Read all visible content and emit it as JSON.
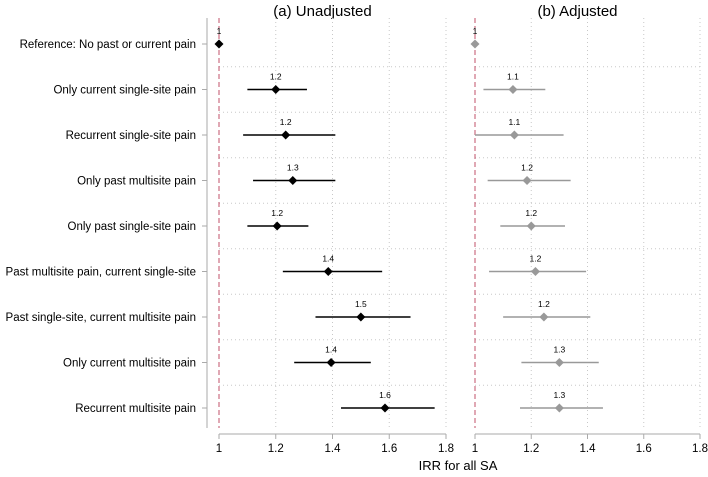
{
  "chart_data": {
    "type": "forest",
    "xlabel": "IRR for all SA",
    "xlim": [
      1,
      1.8
    ],
    "xticks": [
      "1",
      "1.2",
      "1.4",
      "1.6",
      "1.8"
    ],
    "xtick_values": [
      1.0,
      1.2,
      1.4,
      1.6,
      1.8
    ],
    "reference_line": 1.0,
    "categories": [
      "Reference: No past or current pain",
      "Only current single-site pain",
      "Recurrent single-site pain",
      "Only past multisite pain",
      "Only past single-site pain",
      "Past multisite pain, current single-site",
      "Past single-site, current multisite pain",
      "Only current multisite pain",
      "Recurrent multisite pain"
    ],
    "panels": [
      {
        "title": "(a) Unadjusted",
        "color": "#000000",
        "points": [
          {
            "est": 1.0,
            "lo": 1.0,
            "hi": 1.0,
            "label": "1"
          },
          {
            "est": 1.2,
            "lo": 1.1,
            "hi": 1.31,
            "label": "1.2"
          },
          {
            "est": 1.235,
            "lo": 1.085,
            "hi": 1.41,
            "label": "1.2"
          },
          {
            "est": 1.26,
            "lo": 1.12,
            "hi": 1.41,
            "label": "1.3"
          },
          {
            "est": 1.205,
            "lo": 1.1,
            "hi": 1.315,
            "label": "1.2"
          },
          {
            "est": 1.385,
            "lo": 1.225,
            "hi": 1.575,
            "label": "1.4"
          },
          {
            "est": 1.5,
            "lo": 1.34,
            "hi": 1.675,
            "label": "1.5"
          },
          {
            "est": 1.395,
            "lo": 1.265,
            "hi": 1.535,
            "label": "1.4"
          },
          {
            "est": 1.585,
            "lo": 1.43,
            "hi": 1.76,
            "label": "1.6"
          }
        ]
      },
      {
        "title": "(b) Adjusted",
        "color": "#999999",
        "points": [
          {
            "est": 1.0,
            "lo": 1.0,
            "hi": 1.0,
            "label": "1"
          },
          {
            "est": 1.135,
            "lo": 1.03,
            "hi": 1.25,
            "label": "1.1"
          },
          {
            "est": 1.14,
            "lo": 1.0,
            "hi": 1.315,
            "label": "1.1"
          },
          {
            "est": 1.185,
            "lo": 1.045,
            "hi": 1.34,
            "label": "1.2"
          },
          {
            "est": 1.2,
            "lo": 1.09,
            "hi": 1.32,
            "label": "1.2"
          },
          {
            "est": 1.215,
            "lo": 1.05,
            "hi": 1.395,
            "label": "1.2"
          },
          {
            "est": 1.245,
            "lo": 1.1,
            "hi": 1.41,
            "label": "1.2"
          },
          {
            "est": 1.3,
            "lo": 1.165,
            "hi": 1.44,
            "label": "1.3"
          },
          {
            "est": 1.3,
            "lo": 1.16,
            "hi": 1.455,
            "label": "1.3"
          }
        ]
      }
    ]
  }
}
